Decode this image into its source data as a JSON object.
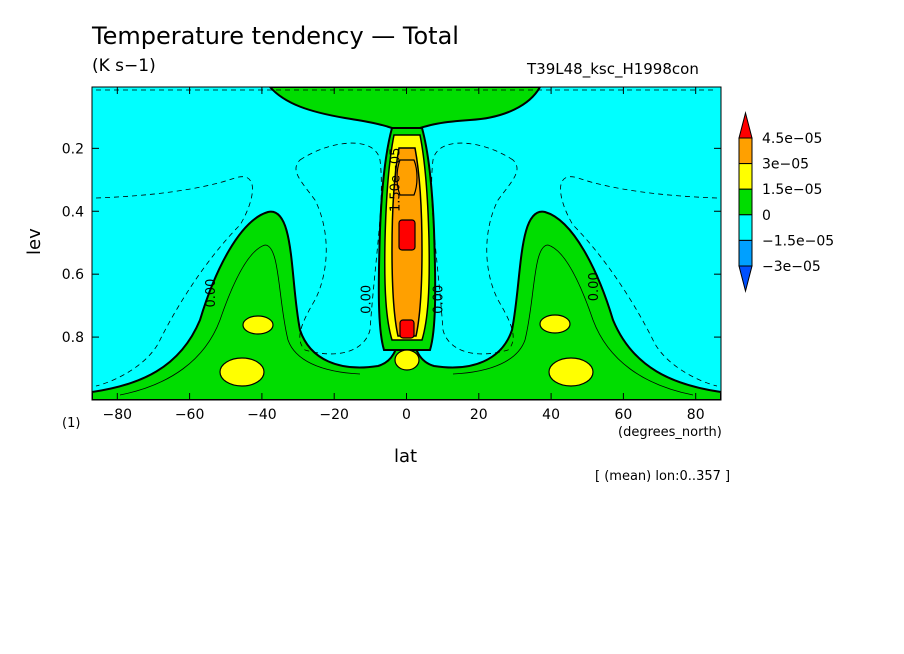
{
  "title": "Temperature tendency — Total",
  "units": "(K s−1)",
  "run_id": "T39L48_ksc_H1998con",
  "panel_label": "(1)",
  "footnote": "[ (mean) lon:0..357 ]",
  "chart_data": {
    "type": "heatmap",
    "xlabel": "lat",
    "x_units": "(degrees_north)",
    "ylabel": "lev",
    "xlim": [
      -87,
      87
    ],
    "ylim": [
      1.0,
      0.005
    ],
    "x_ticks": [
      {
        "value": -80,
        "label": "−80"
      },
      {
        "value": -60,
        "label": "−60"
      },
      {
        "value": -40,
        "label": "−40"
      },
      {
        "value": -20,
        "label": "−20"
      },
      {
        "value": 0,
        "label": "0"
      },
      {
        "value": 20,
        "label": "20"
      },
      {
        "value": 40,
        "label": "40"
      },
      {
        "value": 60,
        "label": "60"
      },
      {
        "value": 80,
        "label": "80"
      }
    ],
    "y_ticks": [
      {
        "value": 0.2,
        "label": "0.2"
      },
      {
        "value": 0.4,
        "label": "0.4"
      },
      {
        "value": 0.6,
        "label": "0.6"
      },
      {
        "value": 0.8,
        "label": "0.8"
      }
    ],
    "colorbar": {
      "levels": [
        {
          "label": "4.5e−05",
          "value": 4.5e-05
        },
        {
          "label": "3e−05",
          "value": 3e-05
        },
        {
          "label": "1.5e−05",
          "value": 1.5e-05
        },
        {
          "label": "0",
          "value": 0
        },
        {
          "label": "−1.5e−05",
          "value": -1.5e-05
        },
        {
          "label": "−3e−05",
          "value": -3e-05
        }
      ],
      "colors": [
        "#ff0000",
        "#ffa000",
        "#ffff00",
        "#00dd00",
        "#00ffff",
        "#00a0ff",
        "#0050ff"
      ]
    },
    "contour_labels": [
      {
        "text": "0.00",
        "lat": -53,
        "lev": 0.66
      },
      {
        "text": "0.00",
        "lat": -10,
        "lev": 0.68
      },
      {
        "text": "0.00",
        "lat": 10,
        "lev": 0.68
      },
      {
        "text": "0.00",
        "lat": 53,
        "lev": 0.64
      },
      {
        "text": "1.50e−05",
        "lat": -2,
        "lev": 0.3
      }
    ],
    "regions": [
      {
        "level": "0 to 1.5e−05",
        "description": "jet-shaped positive lobes near ±40..55 lat below 0.4"
      },
      {
        "level": "> 4.5e−05",
        "description": "equatorial maxima near lev 0.45 and 0.77"
      }
    ],
    "grid": false
  }
}
